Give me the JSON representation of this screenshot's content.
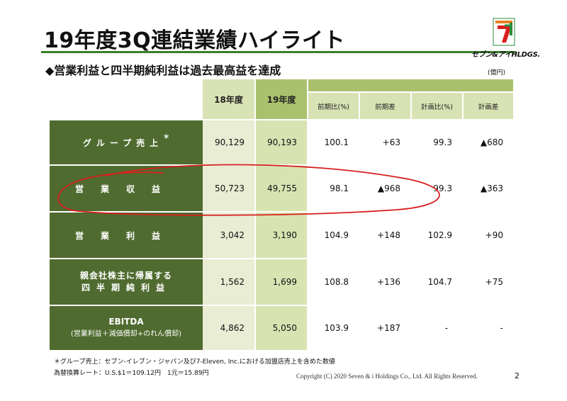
{
  "header": {
    "title": "19年度3Q連結業績ハイライト",
    "subtitle": "◆営業利益と四半期純利益は過去最高益を達成",
    "unit": "(億円)",
    "brand": "セブン&アイHLDGS."
  },
  "table": {
    "columns": [
      {
        "label": "18年度"
      },
      {
        "label": "19年度"
      },
      {
        "label": "前期比(%)"
      },
      {
        "label": "前期差"
      },
      {
        "label": "計画比(%)"
      },
      {
        "label": "計画差"
      }
    ],
    "rows": [
      {
        "label": "グループ売上",
        "mark": "＊",
        "cells": [
          "90,129",
          "90,193",
          "100.1",
          "+63",
          "99.3",
          "▲680"
        ]
      },
      {
        "label": "営業収益",
        "cells": [
          "50,723",
          "49,755",
          "98.1",
          "▲968",
          "99.3",
          "▲363"
        ]
      },
      {
        "label": "営業利益",
        "cells": [
          "3,042",
          "3,190",
          "104.9",
          "+148",
          "102.9",
          "+90"
        ]
      },
      {
        "label_line1": "親会社株主に帰属する",
        "label_line2": "四半期純利益",
        "cells": [
          "1,562",
          "1,699",
          "108.8",
          "+136",
          "104.7",
          "+75"
        ]
      },
      {
        "label_line1": "EBITDA",
        "label_line2": "(営業利益＋減価償却+のれん償却)",
        "cells": [
          "4,862",
          "5,050",
          "103.9",
          "+187",
          "-",
          "-"
        ]
      }
    ]
  },
  "footnotes": {
    "note1": "＊グループ売上：セブン‐イレブン・ジャパン及び7-Eleven, Inc.における加盟店売上を含めた数値",
    "note2": "為替換算レート：U.S.$1＝109.12円　1元＝15.89円"
  },
  "footer": {
    "copyright": "Copyright (C) 2020  Seven & i Holdings Co., Ltd.  All Rights Reserved.",
    "page": "2"
  },
  "colors": {
    "label_bg": "#4f6b2f",
    "header_light": "#d8e2b4",
    "header_dark": "#a9c16d",
    "col1_bg": "#e8edd3",
    "col2_bg": "#d8e3b2",
    "data_bg": "#ffffff",
    "accent": "#3a7d2a",
    "annotation": "#d81e1e"
  }
}
